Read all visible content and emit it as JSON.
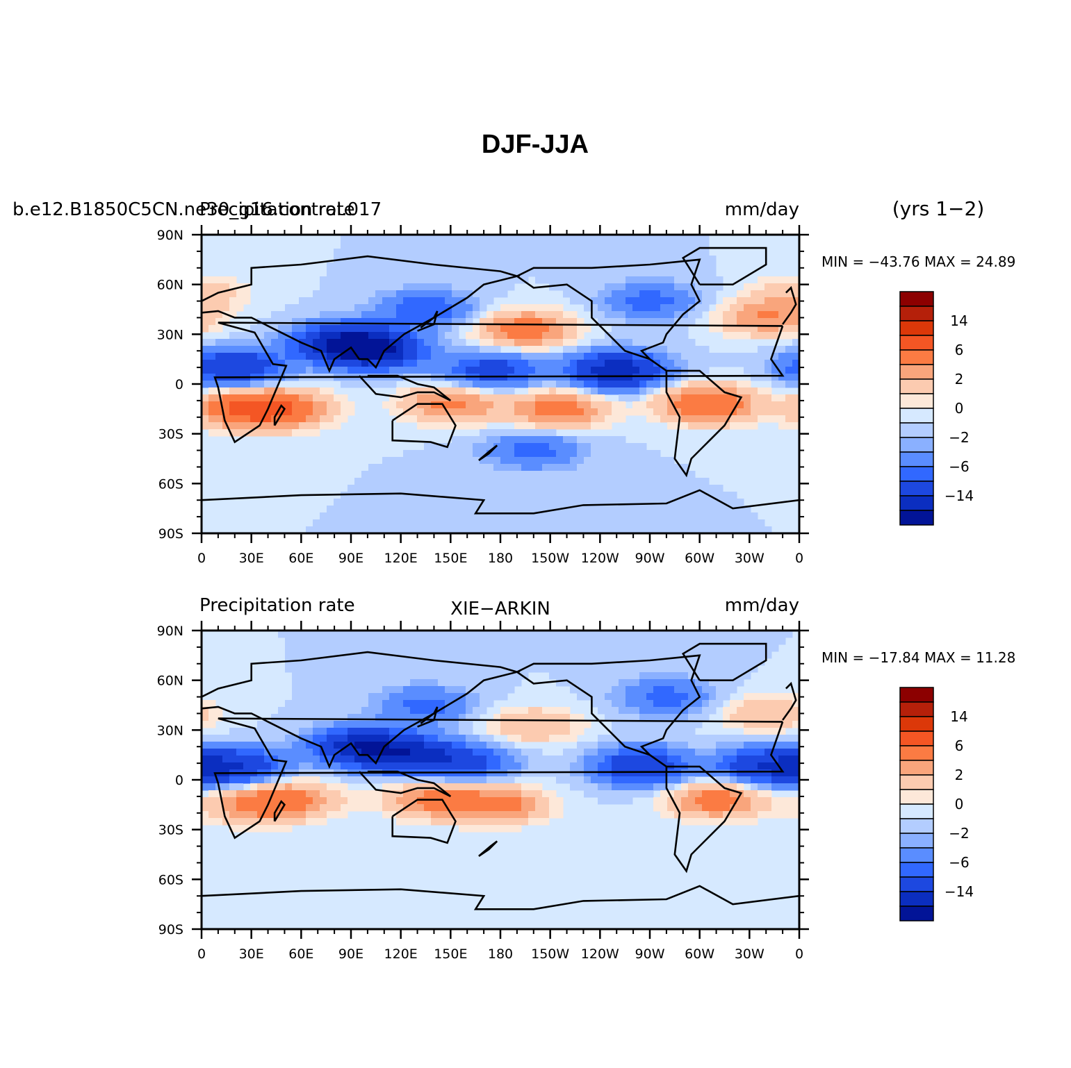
{
  "title": "DJF-JJA",
  "tick_labels": {
    "lat": [
      "90N",
      "60N",
      "30N",
      "0",
      "30S",
      "60S",
      "90S"
    ],
    "lon": [
      "0",
      "30E",
      "60E",
      "90E",
      "120E",
      "150E",
      "180",
      "150W",
      "120W",
      "90W",
      "60W",
      "30W",
      "0"
    ]
  },
  "legend_labels": [
    "14",
    "6",
    "2",
    "0",
    "−2",
    "−6",
    "−14"
  ],
  "legend_colors": [
    "#8c0000",
    "#b5200a",
    "#dc3809",
    "#f45624",
    "#fb7b43",
    "#f9a57c",
    "#fccbb0",
    "#fde8d9",
    "#d6e9ff",
    "#b3cdff",
    "#8ab0ff",
    "#5a8dff",
    "#3168ff",
    "#1d48e0",
    "#0b2ec0",
    "#021497"
  ],
  "panels": [
    {
      "left_label": "b.e12.B1850C5CN.ne30_g16.control.017",
      "left_label_overlap": "Precipitation rate",
      "center_label": "",
      "right_label": "mm/day",
      "years_label": "(yrs 1−2)",
      "min_max": "MIN = −43.76 MAX =  24.89",
      "field": [
        {
          "lon": 25,
          "lat": -15,
          "v": 9
        },
        {
          "lon": 50,
          "lat": -15,
          "v": 8
        },
        {
          "lon": 150,
          "lat": -12,
          "v": 7
        },
        {
          "lon": 215,
          "lat": -15,
          "v": 8
        },
        {
          "lon": 305,
          "lat": -12,
          "v": 10
        },
        {
          "lon": 195,
          "lat": 33,
          "v": 8
        },
        {
          "lon": 340,
          "lat": 40,
          "v": 6
        },
        {
          "lon": 0,
          "lat": 55,
          "v": 3
        },
        {
          "lon": 85,
          "lat": 25,
          "v": -13
        },
        {
          "lon": 105,
          "lat": 20,
          "v": -12
        },
        {
          "lon": 250,
          "lat": 8,
          "v": -13
        },
        {
          "lon": 20,
          "lat": 10,
          "v": -10
        },
        {
          "lon": 175,
          "lat": 8,
          "v": -8
        },
        {
          "lon": 135,
          "lat": 45,
          "v": -6
        },
        {
          "lon": 270,
          "lat": 50,
          "v": -5
        },
        {
          "lon": 200,
          "lat": -40,
          "v": -5
        }
      ]
    },
    {
      "left_label": "Precipitation rate",
      "center_label": "XIE−ARKIN",
      "right_label": "mm/day",
      "years_label": "",
      "min_max": "MIN = −17.84 MAX =  11.28",
      "field": [
        {
          "lon": 30,
          "lat": -15,
          "v": 6
        },
        {
          "lon": 55,
          "lat": -12,
          "v": 6
        },
        {
          "lon": 140,
          "lat": -12,
          "v": 7
        },
        {
          "lon": 180,
          "lat": -15,
          "v": 7
        },
        {
          "lon": 310,
          "lat": -12,
          "v": 8
        },
        {
          "lon": 200,
          "lat": 33,
          "v": 4
        },
        {
          "lon": 340,
          "lat": 40,
          "v": 4
        },
        {
          "lon": 95,
          "lat": 20,
          "v": -12
        },
        {
          "lon": 125,
          "lat": 15,
          "v": -10
        },
        {
          "lon": 265,
          "lat": 8,
          "v": -10
        },
        {
          "lon": 20,
          "lat": 8,
          "v": -10
        },
        {
          "lon": 340,
          "lat": 8,
          "v": -10
        },
        {
          "lon": 160,
          "lat": 10,
          "v": -7
        },
        {
          "lon": 135,
          "lat": 45,
          "v": -5
        },
        {
          "lon": 280,
          "lat": 50,
          "v": -5
        }
      ]
    }
  ]
}
